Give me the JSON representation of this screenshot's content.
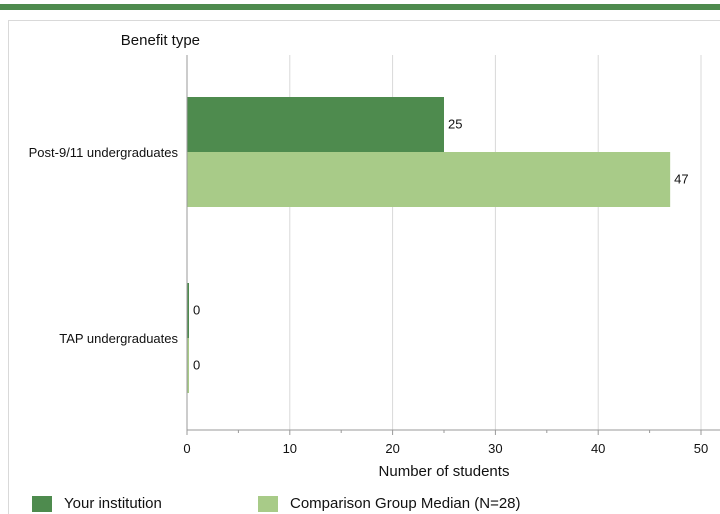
{
  "colors": {
    "rule": "#4e8b4e",
    "series1": "#4e8b4e",
    "series2": "#a8cb88",
    "grid": "#d9d9d9",
    "axis": "#999999"
  },
  "chart_data": {
    "type": "bar",
    "orientation": "horizontal",
    "title": "",
    "ylabel": "Benefit type",
    "xlabel": "Number of students",
    "categories": [
      "Post-9/11 undergraduates",
      "TAP undergraduates"
    ],
    "series": [
      {
        "name": "Your institution",
        "values": [
          25,
          0
        ]
      },
      {
        "name": "Comparison Group Median (N=28)",
        "values": [
          47,
          0
        ]
      }
    ],
    "xlim": [
      0,
      50
    ],
    "xticks": [
      "0",
      "10",
      "20",
      "30",
      "40",
      "50"
    ],
    "grid": true,
    "legend_position": "bottom-left"
  }
}
